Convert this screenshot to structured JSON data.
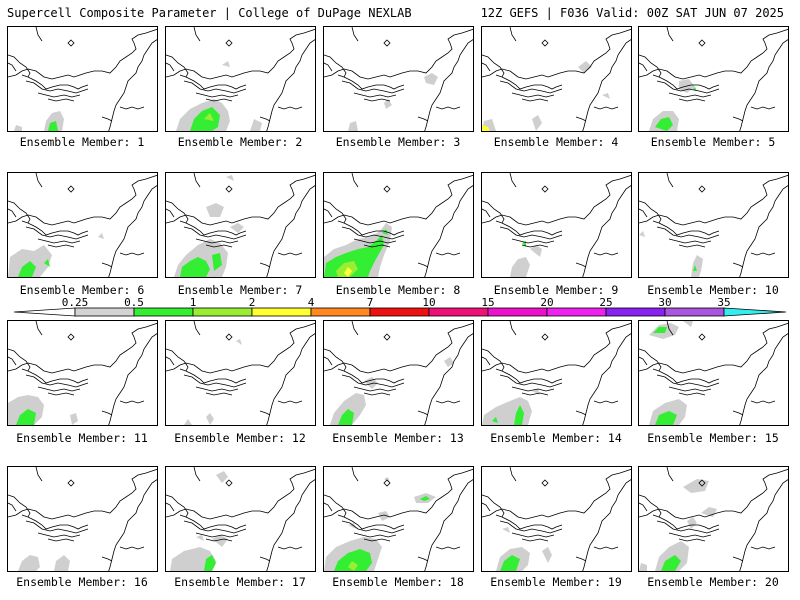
{
  "header": {
    "left_title": "Supercell Composite Parameter | College of DuPage NEXLAB",
    "right_title": "12Z GEFS | F036 Valid: 00Z SAT JUN 07 2025"
  },
  "members": [
    {
      "caption": "Ensemble Member: 1"
    },
    {
      "caption": "Ensemble Member: 2"
    },
    {
      "caption": "Ensemble Member: 3"
    },
    {
      "caption": "Ensemble Member: 4"
    },
    {
      "caption": "Ensemble Member: 5"
    },
    {
      "caption": "Ensemble Member: 6"
    },
    {
      "caption": "Ensemble Member: 7"
    },
    {
      "caption": "Ensemble Member: 8"
    },
    {
      "caption": "Ensemble Member: 9"
    },
    {
      "caption": "Ensemble Member: 10"
    },
    {
      "caption": "Ensemble Member: 11"
    },
    {
      "caption": "Ensemble Member: 12"
    },
    {
      "caption": "Ensemble Member: 13"
    },
    {
      "caption": "Ensemble Member: 14"
    },
    {
      "caption": "Ensemble Member: 15"
    },
    {
      "caption": "Ensemble Member: 16"
    },
    {
      "caption": "Ensemble Member: 17"
    },
    {
      "caption": "Ensemble Member: 18"
    },
    {
      "caption": "Ensemble Member: 19"
    },
    {
      "caption": "Ensemble Member: 20"
    }
  ],
  "legend": {
    "ticks": [
      "0.25",
      "0.5",
      "1",
      "2",
      "4",
      "7",
      "10",
      "15",
      "20",
      "25",
      "30",
      "35"
    ],
    "colors": [
      "#d3d3d3",
      "#33ee33",
      "#99ee33",
      "#ffff33",
      "#ff8822",
      "#ee1111",
      "#ee1177",
      "#ee11cc",
      "#ee22ee",
      "#8822ee",
      "#aa55dd",
      "#33eeee"
    ],
    "end_color": "#ffffff"
  }
}
